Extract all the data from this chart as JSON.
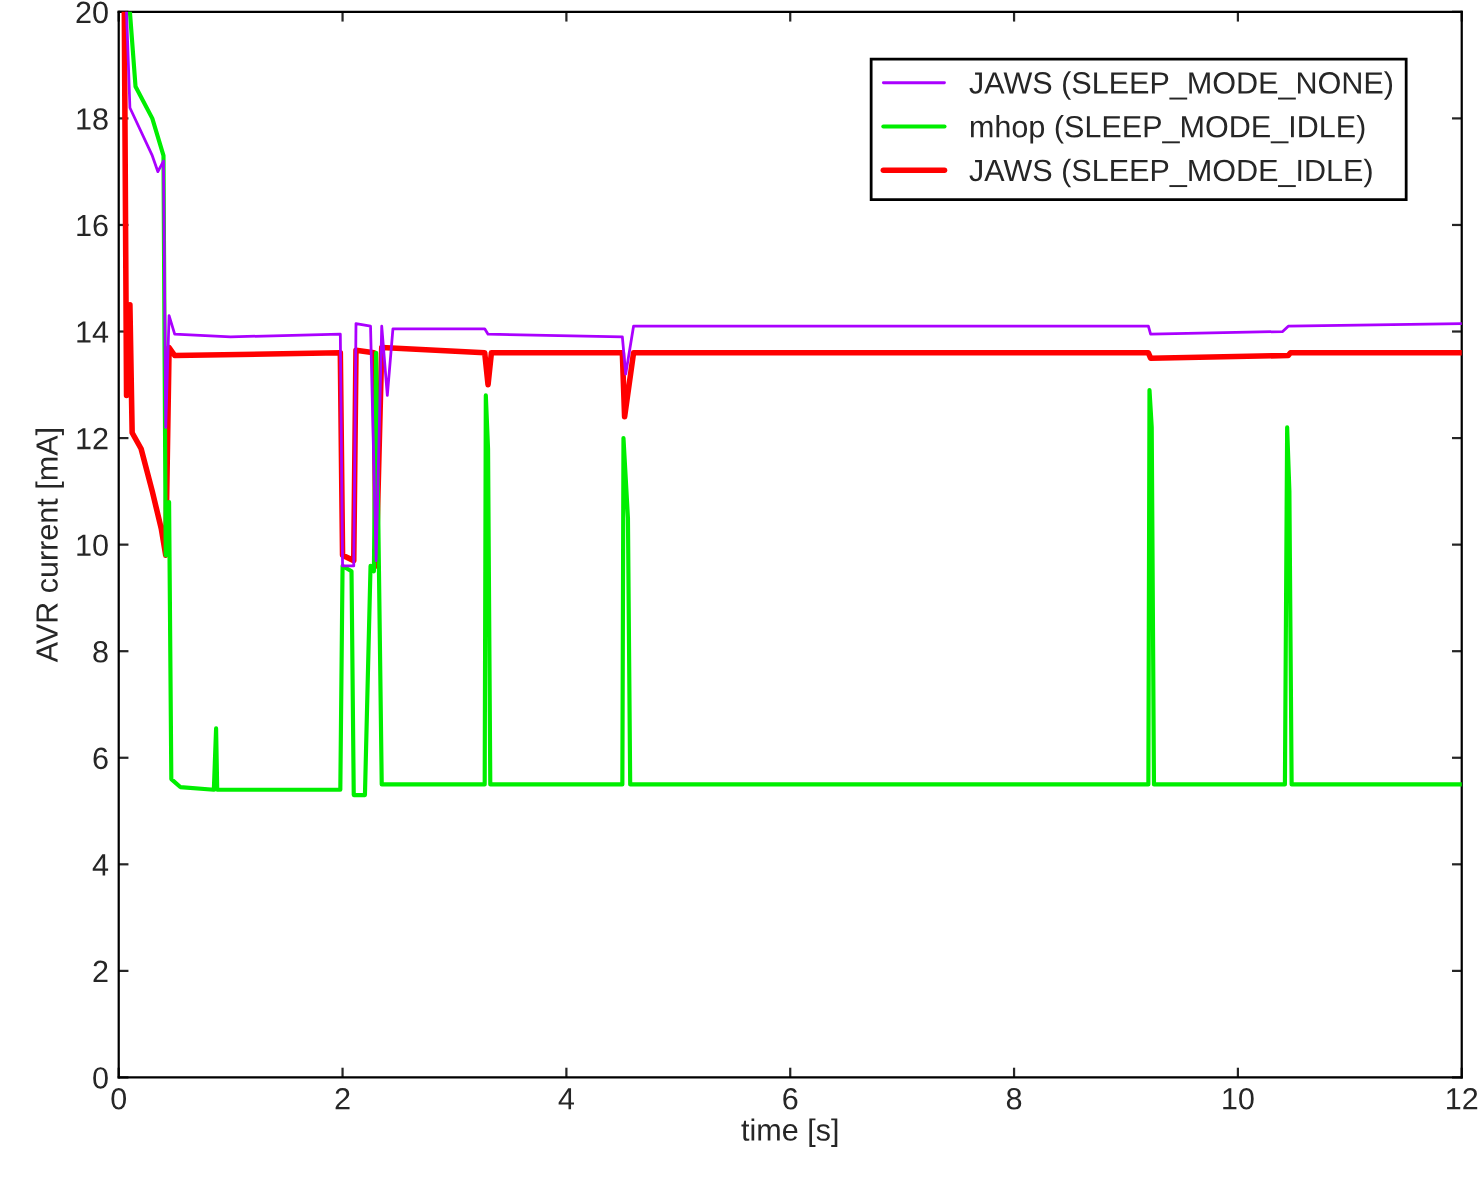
{
  "chart_data": {
    "type": "line",
    "xlabel": "time [s]",
    "ylabel": "AVR current [mA]",
    "xlim": [
      0,
      12
    ],
    "ylim": [
      0,
      20
    ],
    "xticks": [
      0,
      2,
      4,
      6,
      8,
      10,
      12
    ],
    "yticks": [
      0,
      2,
      4,
      6,
      8,
      10,
      12,
      14,
      16,
      18,
      20
    ],
    "grid": false,
    "legend": "top right",
    "marker": "none",
    "line_style": "solid",
    "series": [
      {
        "name": "JAWS (SLEEP_MODE_NONE)",
        "color": "#aa00ff",
        "x": [
          0.07,
          0.1,
          0.3,
          0.35,
          0.4,
          0.42,
          0.45,
          0.5,
          1.0,
          1.98,
          2.0,
          2.1,
          2.12,
          2.25,
          2.3,
          2.35,
          2.4,
          2.45,
          3.27,
          3.3,
          4.5,
          4.53,
          4.6,
          9.2,
          9.22,
          10.4,
          10.45,
          12
        ],
        "values": [
          20,
          18.2,
          17.3,
          17.0,
          17.2,
          12.2,
          14.3,
          13.95,
          13.9,
          13.95,
          9.6,
          9.6,
          14.15,
          14.1,
          9.7,
          14.1,
          12.8,
          14.05,
          14.05,
          13.95,
          13.9,
          13.2,
          14.1,
          14.1,
          13.95,
          14.0,
          14.1,
          14.15
        ]
      },
      {
        "name": "mhop (SLEEP_MODE_IDLE)",
        "color": "#00ee00",
        "x": [
          0.1,
          0.15,
          0.3,
          0.4,
          0.42,
          0.45,
          0.47,
          0.55,
          0.85,
          0.87,
          0.88,
          1.98,
          2.0,
          2.08,
          2.1,
          2.2,
          2.25,
          2.28,
          2.3,
          2.35,
          3.27,
          3.28,
          3.3,
          3.32,
          4.5,
          4.51,
          4.55,
          4.57,
          9.2,
          9.21,
          9.23,
          9.25,
          10.42,
          10.44,
          10.46,
          10.48,
          12
        ],
        "values": [
          20,
          18.6,
          18.0,
          17.3,
          9.8,
          10.8,
          5.6,
          5.45,
          5.4,
          6.55,
          5.4,
          5.4,
          9.6,
          9.5,
          5.3,
          5.3,
          9.6,
          9.5,
          13.6,
          5.5,
          5.5,
          12.8,
          11.8,
          5.5,
          5.5,
          12.0,
          10.5,
          5.5,
          5.5,
          12.9,
          12.2,
          5.5,
          5.5,
          12.2,
          11.0,
          5.5,
          5.5
        ]
      },
      {
        "name": "JAWS (SLEEP_MODE_IDLE)",
        "color": "#ff0000",
        "x": [
          0.05,
          0.07,
          0.1,
          0.12,
          0.2,
          0.3,
          0.38,
          0.42,
          0.45,
          0.5,
          1.98,
          2.0,
          2.1,
          2.12,
          2.28,
          2.3,
          2.35,
          3.27,
          3.3,
          3.33,
          4.5,
          4.52,
          4.6,
          9.2,
          9.22,
          10.45,
          10.47,
          12
        ],
        "values": [
          20,
          12.8,
          14.5,
          12.1,
          11.8,
          11.0,
          10.3,
          9.8,
          13.7,
          13.55,
          13.6,
          9.8,
          9.7,
          13.65,
          13.6,
          9.6,
          13.7,
          13.6,
          13.0,
          13.6,
          13.6,
          12.4,
          13.6,
          13.6,
          13.5,
          13.55,
          13.6,
          13.6
        ]
      }
    ]
  }
}
